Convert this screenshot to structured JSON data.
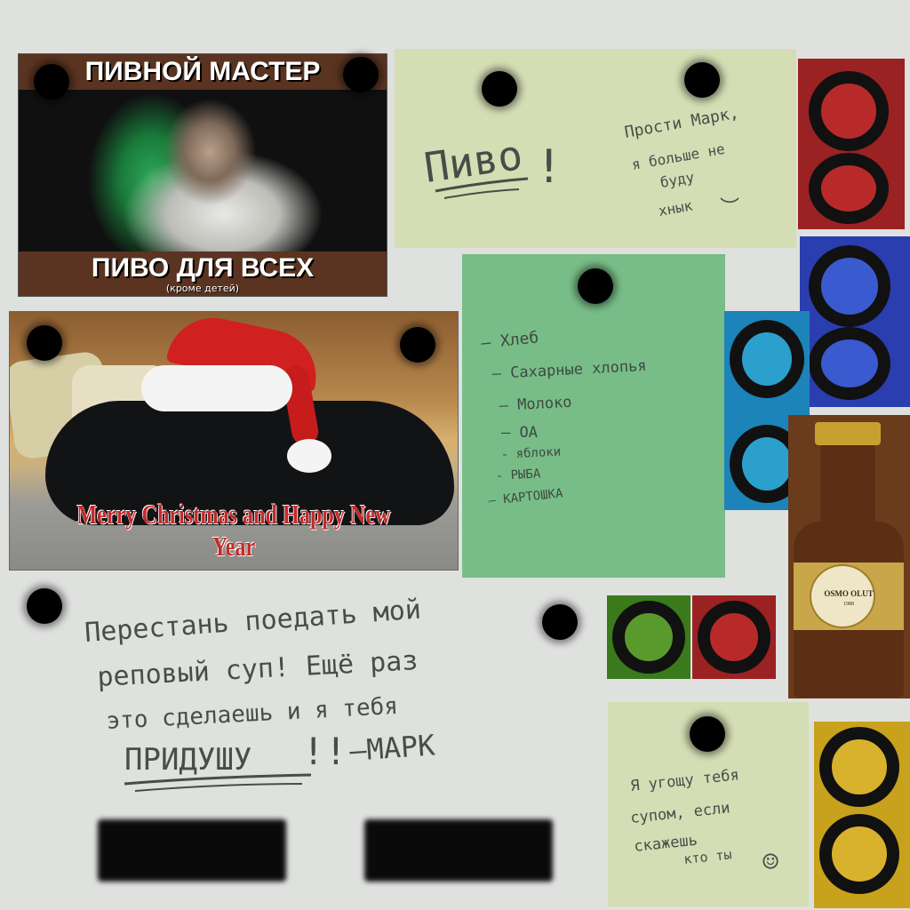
{
  "beer_poster": {
    "top_title": "ПИВНОЙ МАСТЕР",
    "bottom_title": "ПИВО ДЛЯ ВСЕХ",
    "bottom_subtitle": "(кроме детей)"
  },
  "xmas_card": {
    "greeting": "Merry Christmas and Happy New Year"
  },
  "note_beer": {
    "word": "Пиво",
    "exclaim": "!",
    "lines": [
      "Прости Марк,",
      "я больше не",
      "буду",
      "хнык"
    ],
    "frown": "︶"
  },
  "note_list": {
    "items": [
      "— Хлеб",
      "– Сахарные хлопья",
      "— Молоко",
      "— ОА",
      "- яблоки",
      "- РЫБА",
      "— КАРТОШКА"
    ]
  },
  "note_wall": {
    "lines": [
      "Перестань поедать мой",
      "реповый суп!  Ещё раз",
      "это сделаешь и я тебя"
    ],
    "threat": "ПРИДУШУ",
    "exclaim": "!!",
    "signature": "—МАРК"
  },
  "note_soup": {
    "lines": [
      "Я угощу тебя",
      "супом, если",
      "скажешь",
      "кто ты"
    ],
    "smiley": "☺"
  },
  "bottle": {
    "brand": "OSMO OLUT",
    "year": "1988"
  },
  "colors": {
    "red_tile": "#9a2222",
    "blue_tile": "#2a3eb0",
    "teal_tile": "#1c84b8",
    "green_tile": "#3a7a1c",
    "small_red_tile": "#9a2222",
    "yellow_tile": "#c8a21c",
    "note_pale": "#d4ddb4",
    "note_green": "#78bd88"
  }
}
